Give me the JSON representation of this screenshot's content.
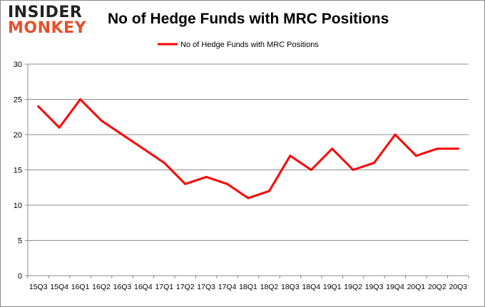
{
  "logo": {
    "line1": "INSIDER",
    "line2": "MONKEY"
  },
  "chart_data": {
    "type": "line",
    "title": "No of Hedge Funds with MRC Positions",
    "xlabel": "",
    "ylabel": "",
    "categories": [
      "15Q3",
      "15Q4",
      "16Q1",
      "16Q2",
      "16Q3",
      "16Q4",
      "17Q1",
      "17Q2",
      "17Q3",
      "17Q4",
      "18Q1",
      "18Q2",
      "18Q3",
      "18Q4",
      "19Q1",
      "19Q2",
      "19Q3",
      "19Q4",
      "20Q1",
      "20Q2",
      "20Q3"
    ],
    "series": [
      {
        "name": "No of Hedge Funds with MRC Positions",
        "color": "#ff0000",
        "values": [
          24,
          21,
          25,
          22,
          20,
          18,
          16,
          13,
          14,
          13,
          11,
          12,
          17,
          15,
          18,
          15,
          16,
          20,
          17,
          18,
          18
        ]
      }
    ],
    "ylim": [
      0,
      30
    ],
    "yticks": [
      0,
      5,
      10,
      15,
      20,
      25,
      30
    ],
    "grid": true,
    "legend_position": "top"
  }
}
